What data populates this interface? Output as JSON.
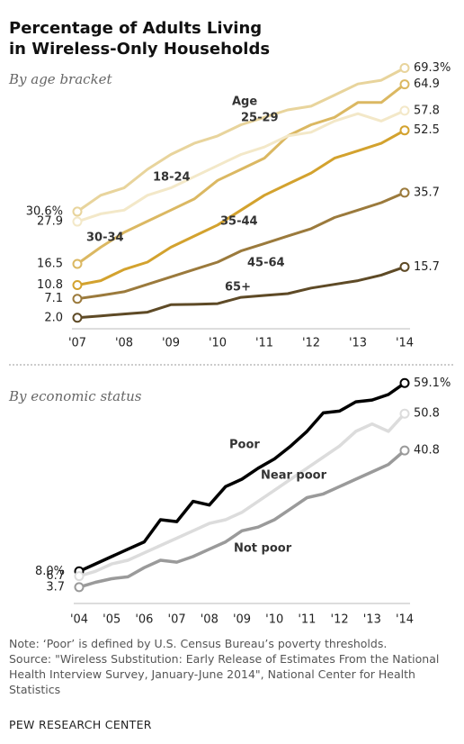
{
  "title": "Percentage of Adults Living in Wireless-Only Households",
  "chart_data": [
    {
      "type": "line",
      "subtitle": "By age bracket",
      "annotation": "Age",
      "categories": [
        "'07",
        null,
        "'08",
        null,
        "'09",
        null,
        "'10",
        null,
        "'11",
        null,
        "'12",
        null,
        "'13",
        null,
        "'14"
      ],
      "ylim": [
        0,
        70
      ],
      "series": [
        {
          "name": "25-29",
          "color": "#e8d49c",
          "values": [
            30.6,
            35,
            37,
            42,
            46,
            49,
            51,
            54,
            56,
            58,
            59,
            62,
            65,
            66,
            69.3
          ],
          "value_labels": [
            "30.6%",
            null,
            null,
            null,
            null,
            null,
            null,
            null,
            null,
            null,
            null,
            null,
            null,
            null,
            "69.3%"
          ]
        },
        {
          "name": "30-34",
          "color": "#dbb862",
          "values": [
            16.5,
            21,
            25,
            28,
            31,
            34,
            39,
            42,
            45,
            51,
            54,
            56,
            60,
            60,
            64.9
          ],
          "value_labels": [
            "16.5",
            null,
            null,
            null,
            null,
            null,
            null,
            null,
            null,
            null,
            null,
            null,
            null,
            null,
            "64.9"
          ]
        },
        {
          "name": "18-24",
          "color": "#f3e8c8",
          "values": [
            27.9,
            30,
            31,
            35,
            37,
            40,
            43,
            46,
            48,
            51,
            52,
            55,
            57,
            55,
            57.8
          ],
          "value_labels": [
            "27.9",
            null,
            null,
            null,
            null,
            null,
            null,
            null,
            null,
            null,
            null,
            null,
            null,
            null,
            "57.8"
          ]
        },
        {
          "name": "35-44",
          "color": "#d3a22e",
          "values": [
            10.8,
            12,
            15,
            17,
            21,
            24,
            27,
            31,
            35,
            38,
            41,
            45,
            47,
            49,
            52.5
          ],
          "value_labels": [
            "10.8",
            null,
            null,
            null,
            null,
            null,
            null,
            null,
            null,
            null,
            null,
            null,
            null,
            null,
            "52.5"
          ]
        },
        {
          "name": "45-64",
          "color": "#9b7a3c",
          "values": [
            7.1,
            8,
            9,
            11,
            13,
            15,
            17,
            20,
            22,
            24,
            26,
            29,
            31,
            33,
            35.7
          ],
          "value_labels": [
            "7.1",
            null,
            null,
            null,
            null,
            null,
            null,
            null,
            null,
            null,
            null,
            null,
            null,
            null,
            "35.7"
          ]
        },
        {
          "name": "65+",
          "color": "#5e4a26",
          "values": [
            2.0,
            2.5,
            3,
            3.5,
            5.5,
            5.6,
            5.8,
            7.5,
            8,
            8.5,
            10,
            11,
            12,
            13.5,
            15.7
          ],
          "value_labels": [
            "2.0",
            null,
            null,
            null,
            null,
            null,
            null,
            null,
            null,
            null,
            null,
            null,
            null,
            null,
            "15.7"
          ]
        }
      ]
    },
    {
      "type": "line",
      "subtitle": "By economic status",
      "categories": [
        "'04",
        null,
        "'05",
        null,
        "'06",
        null,
        "'07",
        null,
        "'08",
        null,
        "'09",
        null,
        "'10",
        null,
        "'11",
        null,
        "'12",
        null,
        "'13",
        null,
        "'14"
      ],
      "ylim": [
        0,
        60
      ],
      "series": [
        {
          "name": "Poor",
          "color": "#000000",
          "values": [
            8.0,
            10,
            12,
            14,
            16,
            22,
            21.5,
            27,
            26,
            31,
            33,
            36,
            38.5,
            42,
            46,
            51,
            51.5,
            54,
            54.5,
            56,
            59.1
          ],
          "value_labels": [
            "8.0%",
            null,
            null,
            null,
            null,
            null,
            null,
            null,
            null,
            null,
            null,
            null,
            null,
            null,
            null,
            null,
            null,
            null,
            null,
            null,
            "59.1%"
          ]
        },
        {
          "name": "Near poor",
          "color": "#dcdcdc",
          "values": [
            6.7,
            8,
            10,
            11,
            13,
            15,
            17,
            19,
            21,
            22,
            24,
            27,
            30,
            33,
            36,
            39,
            42,
            46,
            48,
            46,
            50.8
          ],
          "value_labels": [
            "6.7",
            null,
            null,
            null,
            null,
            null,
            null,
            null,
            null,
            null,
            null,
            null,
            null,
            null,
            null,
            null,
            null,
            null,
            null,
            null,
            "50.8"
          ]
        },
        {
          "name": "Not poor",
          "color": "#9a9a9a",
          "values": [
            3.7,
            5,
            6,
            6.5,
            9,
            11,
            10.5,
            12,
            14,
            16,
            19,
            20,
            22,
            25,
            28,
            29,
            31,
            33,
            35,
            37,
            40.8
          ],
          "value_labels": [
            "3.7",
            null,
            null,
            null,
            null,
            null,
            null,
            null,
            null,
            null,
            null,
            null,
            null,
            null,
            null,
            null,
            null,
            null,
            null,
            null,
            "40.8"
          ]
        }
      ]
    }
  ],
  "note": "Note: ‘Poor’ is defined by U.S. Census Bureau’s poverty thresholds.",
  "source": "Source: \"Wireless Substitution: Early Release of Estimates From the National Health Interview Survey, January-June 2014\", National Center for Health Statistics",
  "footer": "PEW RESEARCH CENTER"
}
